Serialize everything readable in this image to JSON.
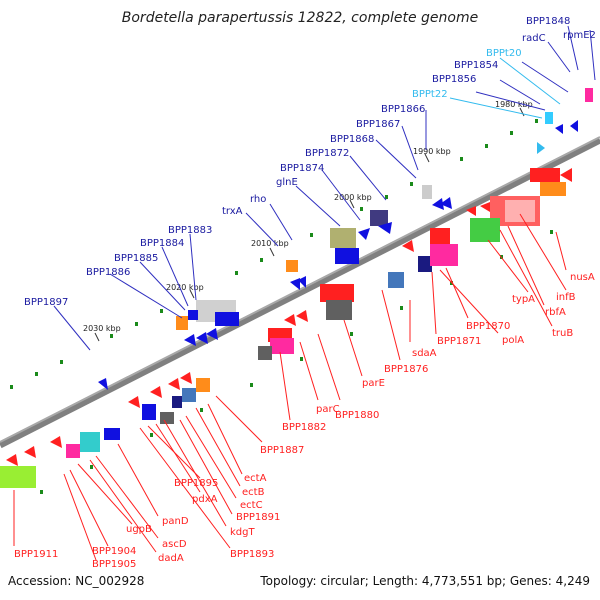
{
  "title": "Bordetella parapertussis 12822, complete genome",
  "footer": {
    "accession": "Accession: NC_002928",
    "summary": "Topology: circular; Length: 4,773,551 bp; Genes: 4,249"
  },
  "ticks": [
    "1980 kbp",
    "1990 kbp",
    "2000 kbp",
    "2010 kbp",
    "2020 kbp",
    "2030 kbp"
  ],
  "labels_upper": [
    "rpmE2",
    "BPP1848",
    "radC",
    "BPPt20",
    "BPP1854",
    "BPP1856",
    "BPPt22",
    "BPP1866",
    "BPP1867",
    "BPP1868",
    "BPP1872",
    "BPP1874",
    "glnE",
    "rho",
    "trxA",
    "BPP1883",
    "BPP1884",
    "BPP1885",
    "BPP1886",
    "BPP1897"
  ],
  "labels_lower": [
    "nusA",
    "infB",
    "rbfA",
    "truB",
    "typA",
    "polA",
    "BPP1870",
    "BPP1871",
    "sdaA",
    "BPP1876",
    "parE",
    "BPP1880",
    "parC",
    "BPP1882",
    "BPP1887",
    "ectA",
    "ectB",
    "ectC",
    "BPP1891",
    "kdgT",
    "pdxA",
    "BPP1895",
    "BPP1893",
    "panD",
    "ascD",
    "dadA",
    "ugpB",
    "BPP1904",
    "BPP1905",
    "BPP1911"
  ],
  "colors": {
    "backbone": "#808080",
    "forward_gene": "#1010e0",
    "reverse_gene": "#ff1010",
    "upper_label": "#1a1aa0",
    "lower_label": "#ff2020",
    "trna_label": "#33bbee",
    "gc_dots": "#1a8a1a"
  }
}
